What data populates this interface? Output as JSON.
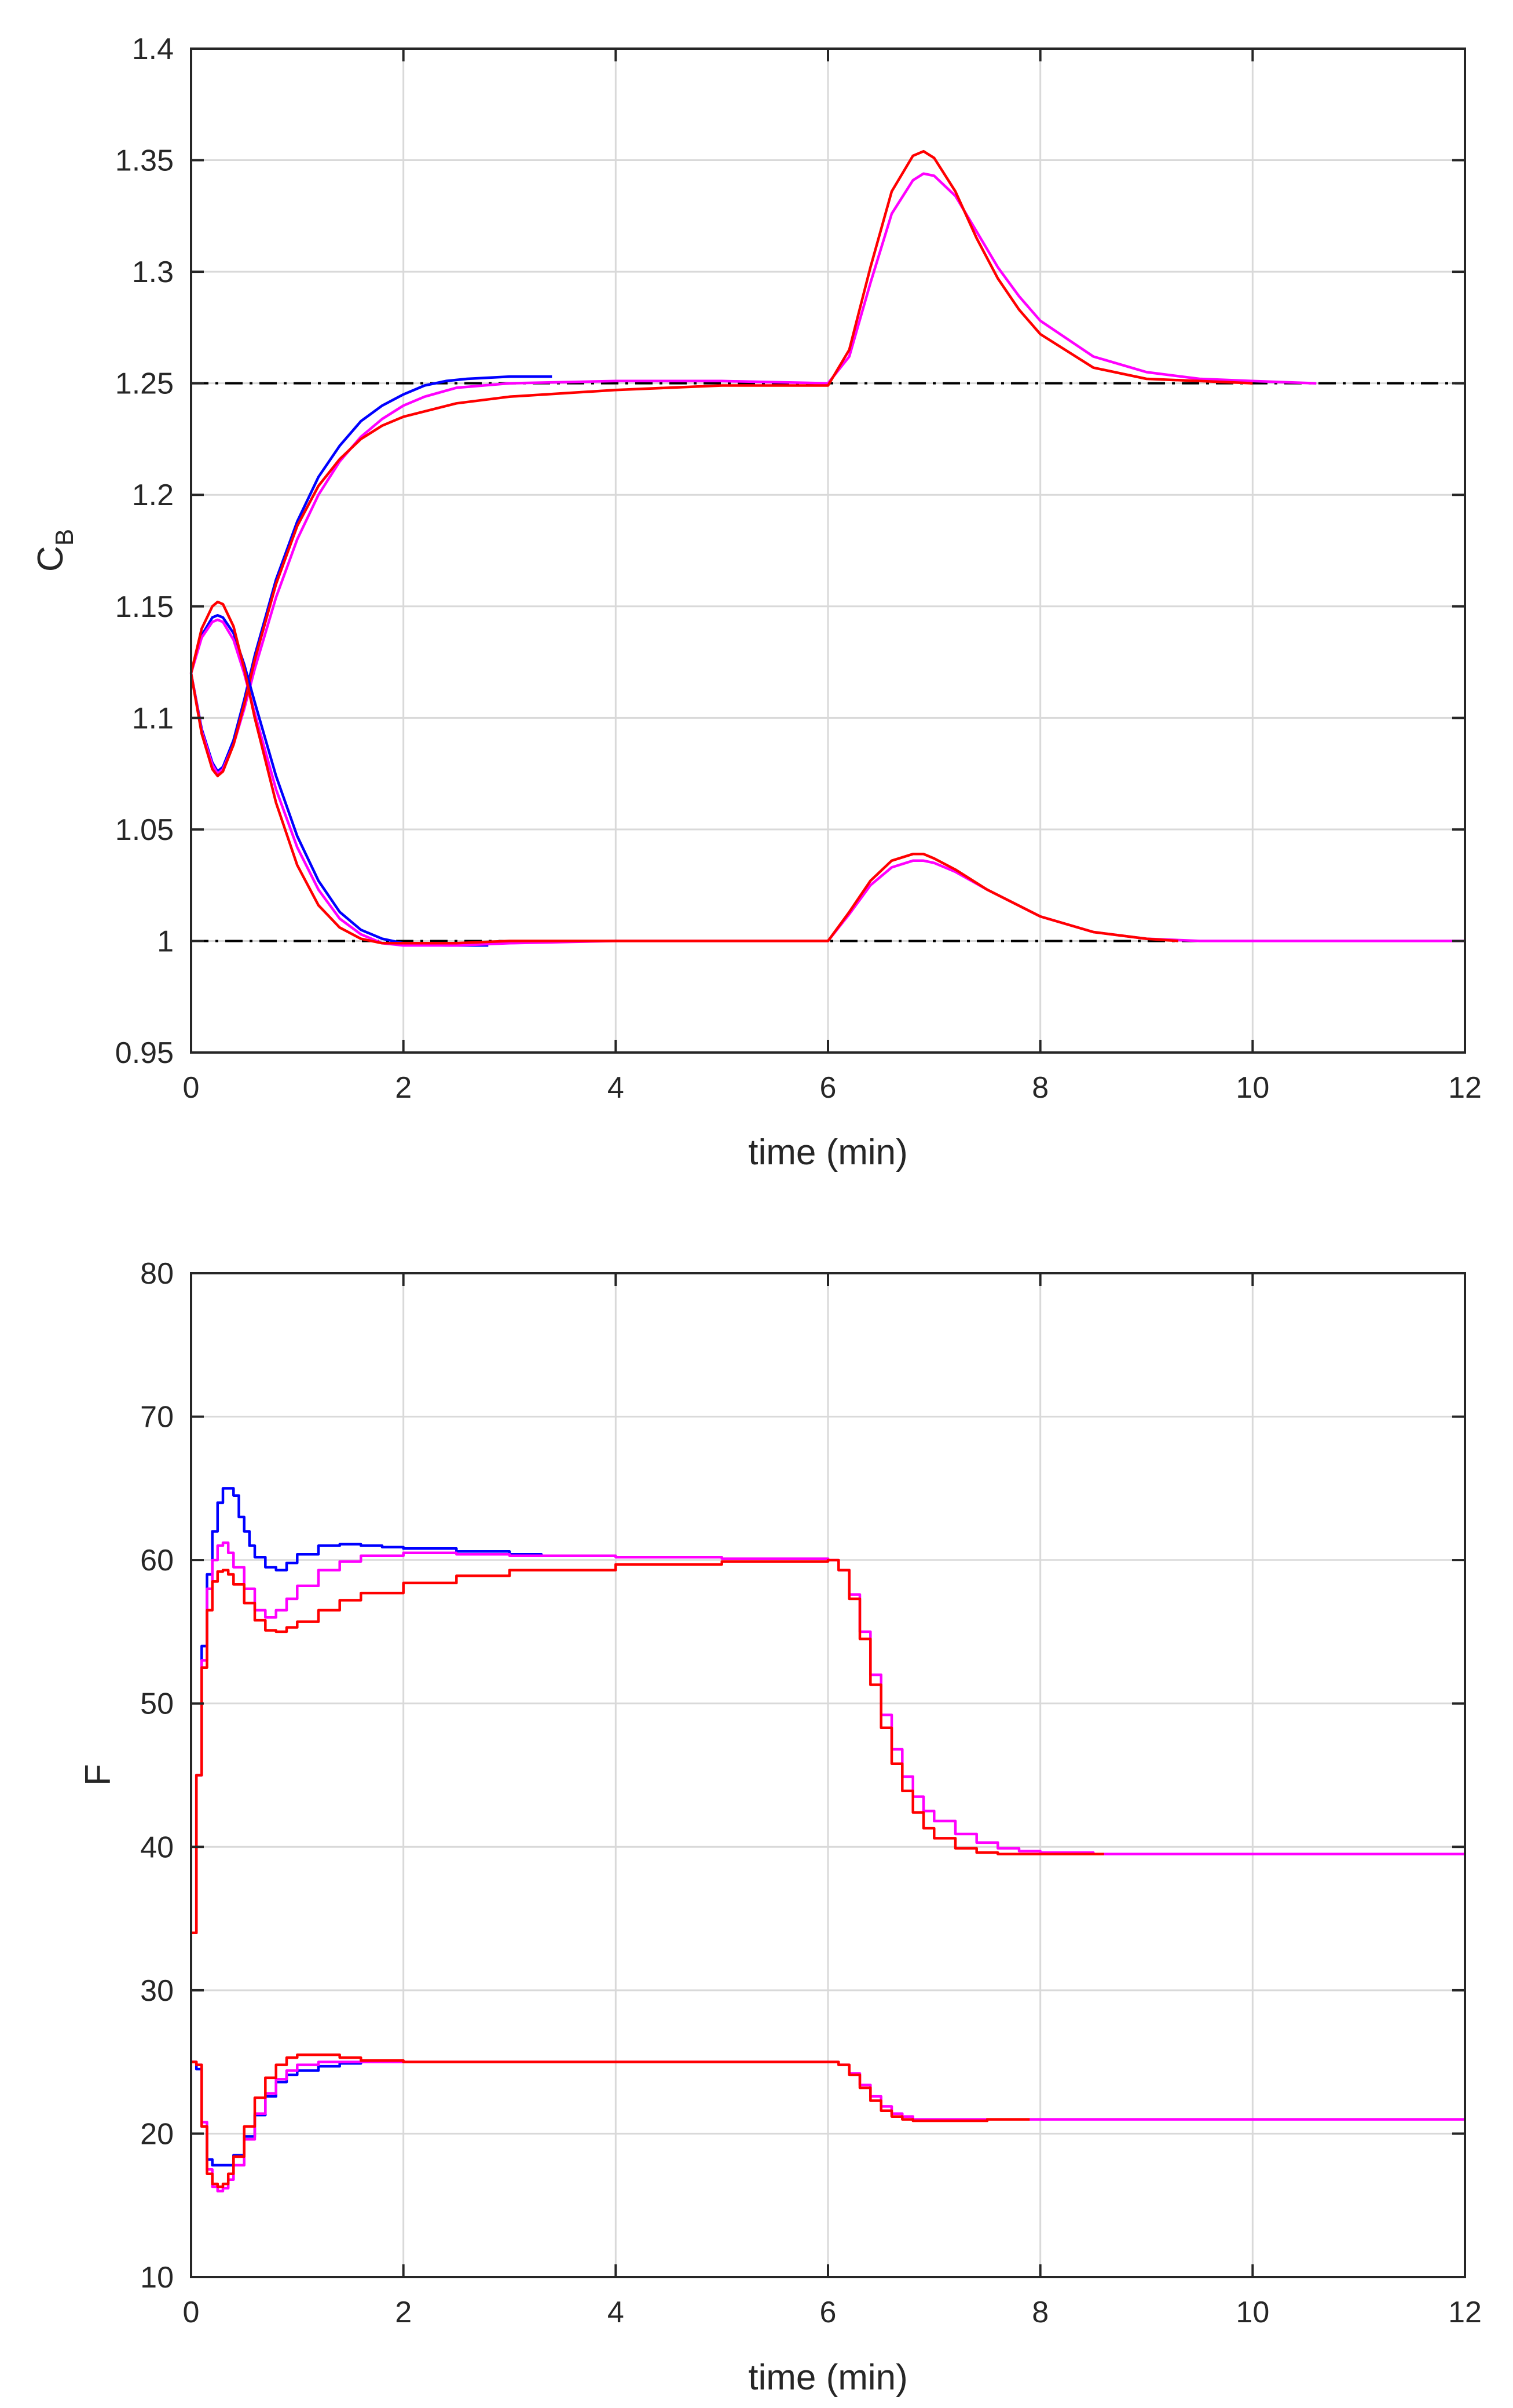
{
  "chart_data": [
    {
      "type": "line",
      "title": "",
      "xlabel": "time (min)",
      "ylabel": "C",
      "ylabel_subscript": "B",
      "xlim": [
        0,
        12
      ],
      "ylim": [
        0.95,
        1.4
      ],
      "xticks": [
        "0",
        "2",
        "4",
        "6",
        "8",
        "10",
        "12"
      ],
      "yticks": [
        "0.95",
        "1",
        "1.05",
        "1.1",
        "1.15",
        "1.2",
        "1.25",
        "1.3",
        "1.35",
        "1.4"
      ],
      "grid": true,
      "reference_lines": [
        {
          "name": "setpoint-high",
          "y": 1.25,
          "style": "dash-dot",
          "color": "#000000"
        },
        {
          "name": "setpoint-low",
          "y": 1.0,
          "style": "dash-dot",
          "color": "#000000"
        }
      ],
      "series": [
        {
          "name": "blue-upper",
          "color": "#0000ff",
          "x": [
            0,
            0.1,
            0.2,
            0.25,
            0.3,
            0.4,
            0.5,
            0.6,
            0.8,
            1.0,
            1.2,
            1.4,
            1.6,
            1.8,
            2.0,
            2.2,
            2.4,
            2.6,
            3.0,
            3.4
          ],
          "y": [
            1.12,
            1.095,
            1.08,
            1.076,
            1.078,
            1.09,
            1.108,
            1.128,
            1.162,
            1.188,
            1.208,
            1.222,
            1.233,
            1.24,
            1.245,
            1.249,
            1.251,
            1.252,
            1.253,
            1.253
          ]
        },
        {
          "name": "magenta-upper",
          "color": "#ff00ff",
          "x": [
            0,
            0.1,
            0.2,
            0.25,
            0.3,
            0.4,
            0.5,
            0.6,
            0.8,
            1.0,
            1.2,
            1.4,
            1.6,
            1.8,
            2.0,
            2.2,
            2.5,
            3.0,
            4.0,
            5.0,
            6.0,
            6.2,
            6.4,
            6.6,
            6.8,
            6.9,
            7.0,
            7.2,
            7.4,
            7.6,
            7.8,
            8.0,
            8.5,
            9.0,
            9.5,
            10.0,
            10.6
          ],
          "y": [
            1.12,
            1.094,
            1.079,
            1.075,
            1.077,
            1.088,
            1.104,
            1.122,
            1.154,
            1.18,
            1.2,
            1.215,
            1.226,
            1.234,
            1.24,
            1.244,
            1.248,
            1.25,
            1.251,
            1.251,
            1.25,
            1.262,
            1.295,
            1.326,
            1.341,
            1.344,
            1.343,
            1.334,
            1.318,
            1.302,
            1.289,
            1.278,
            1.262,
            1.255,
            1.252,
            1.251,
            1.25
          ]
        },
        {
          "name": "red-upper",
          "color": "#ff0000",
          "x": [
            0,
            0.1,
            0.2,
            0.25,
            0.3,
            0.4,
            0.5,
            0.6,
            0.8,
            1.0,
            1.2,
            1.4,
            1.6,
            1.8,
            2.0,
            2.5,
            3.0,
            4.0,
            5.0,
            6.0,
            6.2,
            6.4,
            6.6,
            6.8,
            6.9,
            7.0,
            7.2,
            7.4,
            7.6,
            7.8,
            8.0,
            8.5,
            9.0,
            9.5,
            10.0
          ],
          "y": [
            1.12,
            1.093,
            1.077,
            1.074,
            1.076,
            1.088,
            1.106,
            1.126,
            1.16,
            1.186,
            1.204,
            1.216,
            1.225,
            1.231,
            1.235,
            1.241,
            1.244,
            1.247,
            1.249,
            1.249,
            1.265,
            1.302,
            1.336,
            1.352,
            1.354,
            1.351,
            1.336,
            1.315,
            1.297,
            1.283,
            1.272,
            1.257,
            1.252,
            1.251,
            1.25
          ]
        },
        {
          "name": "blue-lower",
          "color": "#0000ff",
          "x": [
            0,
            0.1,
            0.2,
            0.25,
            0.3,
            0.4,
            0.5,
            0.6,
            0.8,
            1.0,
            1.2,
            1.4,
            1.6,
            1.8,
            2.0,
            2.4,
            2.8
          ],
          "y": [
            1.12,
            1.137,
            1.145,
            1.146,
            1.145,
            1.138,
            1.124,
            1.107,
            1.074,
            1.047,
            1.027,
            1.013,
            1.005,
            1.001,
            0.999,
            0.998,
            0.998
          ]
        },
        {
          "name": "magenta-lower",
          "color": "#ff00ff",
          "x": [
            0,
            0.1,
            0.2,
            0.25,
            0.3,
            0.4,
            0.5,
            0.6,
            0.8,
            1.0,
            1.2,
            1.4,
            1.6,
            1.8,
            2.0,
            2.5,
            3.0,
            4.0,
            5.0,
            6.0,
            6.2,
            6.4,
            6.6,
            6.8,
            6.9,
            7.0,
            7.2,
            7.5,
            8.0,
            8.5,
            9.0,
            9.5,
            10.0,
            12.0
          ],
          "y": [
            1.12,
            1.136,
            1.143,
            1.144,
            1.143,
            1.135,
            1.12,
            1.102,
            1.068,
            1.042,
            1.023,
            1.01,
            1.003,
            0.999,
            0.998,
            0.998,
            0.999,
            1.0,
            1.0,
            1.0,
            1.012,
            1.025,
            1.033,
            1.036,
            1.036,
            1.035,
            1.031,
            1.023,
            1.011,
            1.004,
            1.001,
            1.0,
            1.0,
            1.0
          ]
        },
        {
          "name": "red-lower",
          "color": "#ff0000",
          "x": [
            0,
            0.1,
            0.2,
            0.25,
            0.3,
            0.4,
            0.5,
            0.6,
            0.8,
            1.0,
            1.2,
            1.4,
            1.6,
            1.8,
            2.0,
            2.5,
            3.0,
            4.0,
            5.0,
            6.0,
            6.2,
            6.4,
            6.6,
            6.8,
            6.9,
            7.0,
            7.2,
            7.5,
            8.0,
            8.5,
            9.0,
            9.3
          ],
          "y": [
            1.12,
            1.14,
            1.15,
            1.152,
            1.151,
            1.141,
            1.122,
            1.1,
            1.062,
            1.034,
            1.016,
            1.006,
            1.001,
            0.999,
            0.999,
            0.999,
            1.0,
            1.0,
            1.0,
            1.0,
            1.013,
            1.027,
            1.036,
            1.039,
            1.039,
            1.037,
            1.032,
            1.023,
            1.011,
            1.004,
            1.001,
            1.0
          ]
        }
      ]
    },
    {
      "type": "line",
      "title": "",
      "xlabel": "time (min)",
      "ylabel": "F",
      "xlim": [
        0,
        12
      ],
      "ylim": [
        10,
        80
      ],
      "xticks": [
        "0",
        "2",
        "4",
        "6",
        "8",
        "10",
        "12"
      ],
      "yticks": [
        "10",
        "20",
        "30",
        "40",
        "50",
        "60",
        "70",
        "80"
      ],
      "grid": true,
      "series": [
        {
          "name": "blue-upper",
          "color": "#0000ff",
          "step": true,
          "x": [
            0,
            0.05,
            0.1,
            0.15,
            0.2,
            0.25,
            0.3,
            0.35,
            0.4,
            0.45,
            0.5,
            0.55,
            0.6,
            0.7,
            0.8,
            0.9,
            1.0,
            1.2,
            1.4,
            1.6,
            1.8,
            2.0,
            2.5,
            3.0,
            3.3
          ],
          "y": [
            34,
            45,
            54,
            59,
            62,
            64,
            65,
            65,
            64.5,
            63,
            62,
            61,
            60.2,
            59.5,
            59.3,
            59.8,
            60.4,
            61,
            61.1,
            61,
            60.9,
            60.8,
            60.6,
            60.4,
            60.3
          ]
        },
        {
          "name": "magenta-upper",
          "color": "#ff00ff",
          "step": true,
          "x": [
            0,
            0.05,
            0.1,
            0.15,
            0.2,
            0.25,
            0.3,
            0.35,
            0.4,
            0.5,
            0.6,
            0.7,
            0.8,
            0.9,
            1.0,
            1.2,
            1.4,
            1.6,
            2.0,
            2.5,
            3.0,
            4.0,
            5.0,
            6.0,
            6.1,
            6.2,
            6.3,
            6.4,
            6.5,
            6.6,
            6.7,
            6.8,
            6.9,
            7.0,
            7.2,
            7.4,
            7.6,
            7.8,
            8.0,
            8.5,
            9.0,
            10.0,
            12.0
          ],
          "y": [
            34,
            45,
            53,
            58,
            60,
            61,
            61.2,
            60.5,
            59.5,
            58,
            56.5,
            56,
            56.5,
            57.3,
            58.2,
            59.3,
            59.9,
            60.3,
            60.5,
            60.4,
            60.3,
            60.2,
            60.1,
            60,
            59.3,
            57.6,
            55,
            52,
            49.2,
            46.8,
            44.9,
            43.5,
            42.5,
            41.8,
            40.9,
            40.3,
            39.9,
            39.7,
            39.6,
            39.5,
            39.5,
            39.5,
            39.5
          ]
        },
        {
          "name": "red-upper",
          "color": "#ff0000",
          "step": true,
          "x": [
            0,
            0.05,
            0.1,
            0.15,
            0.2,
            0.25,
            0.3,
            0.35,
            0.4,
            0.5,
            0.6,
            0.7,
            0.8,
            0.9,
            1.0,
            1.2,
            1.4,
            1.6,
            2.0,
            2.5,
            3.0,
            4.0,
            5.0,
            5.5,
            6.0,
            6.1,
            6.2,
            6.3,
            6.4,
            6.5,
            6.6,
            6.7,
            6.8,
            6.9,
            7.0,
            7.2,
            7.4,
            7.6,
            7.8,
            8.0,
            8.6
          ],
          "y": [
            34,
            45,
            52.5,
            56.5,
            58.5,
            59.2,
            59.3,
            59,
            58.3,
            57,
            55.8,
            55.1,
            55,
            55.3,
            55.7,
            56.5,
            57.2,
            57.7,
            58.4,
            58.9,
            59.3,
            59.7,
            59.9,
            59.9,
            60,
            59.3,
            57.3,
            54.5,
            51.3,
            48.3,
            45.8,
            43.9,
            42.4,
            41.3,
            40.6,
            39.9,
            39.6,
            39.5,
            39.5,
            39.5,
            39.5
          ]
        },
        {
          "name": "blue-lower",
          "color": "#0000ff",
          "step": true,
          "x": [
            0,
            0.05,
            0.1,
            0.15,
            0.2,
            0.3,
            0.4,
            0.5,
            0.6,
            0.7,
            0.8,
            0.9,
            1.0,
            1.2,
            1.4,
            1.6
          ],
          "y": [
            25,
            24.5,
            20.5,
            18.2,
            17.8,
            17.8,
            18.5,
            19.8,
            21.3,
            22.6,
            23.6,
            24.1,
            24.4,
            24.7,
            24.9,
            25
          ]
        },
        {
          "name": "magenta-lower",
          "color": "#ff00ff",
          "step": true,
          "x": [
            0,
            0.05,
            0.1,
            0.15,
            0.2,
            0.25,
            0.3,
            0.35,
            0.4,
            0.5,
            0.6,
            0.7,
            0.8,
            0.9,
            1.0,
            1.2,
            1.4,
            1.6,
            2.0,
            3.0,
            4.0,
            5.0,
            6.0,
            6.1,
            6.2,
            6.3,
            6.4,
            6.5,
            6.6,
            6.7,
            6.8,
            7.0,
            7.5,
            8.0,
            9.0,
            10.0,
            12.0
          ],
          "y": [
            25,
            24.8,
            20.8,
            17.5,
            16.3,
            16,
            16.2,
            16.8,
            17.8,
            19.6,
            21.4,
            22.8,
            23.8,
            24.4,
            24.8,
            25,
            25,
            25,
            25,
            25,
            25,
            25,
            25,
            24.8,
            24.2,
            23.4,
            22.6,
            21.9,
            21.4,
            21.2,
            21,
            21,
            21,
            21,
            21,
            21,
            21
          ]
        },
        {
          "name": "red-lower",
          "color": "#ff0000",
          "step": true,
          "x": [
            0,
            0.05,
            0.1,
            0.15,
            0.2,
            0.25,
            0.3,
            0.35,
            0.4,
            0.5,
            0.6,
            0.7,
            0.8,
            0.9,
            1.0,
            1.2,
            1.4,
            1.6,
            2.0,
            3.0,
            4.0,
            5.0,
            6.0,
            6.1,
            6.2,
            6.3,
            6.4,
            6.5,
            6.6,
            6.7,
            6.8,
            7.0,
            7.5,
            7.9
          ],
          "y": [
            25,
            24.8,
            20.5,
            17.2,
            16.5,
            16.3,
            16.5,
            17.2,
            18.4,
            20.5,
            22.5,
            23.9,
            24.8,
            25.3,
            25.5,
            25.5,
            25.3,
            25.1,
            25,
            25,
            25,
            25,
            25,
            24.8,
            24.1,
            23.2,
            22.3,
            21.6,
            21.2,
            21,
            20.9,
            20.9,
            21,
            21
          ]
        }
      ]
    }
  ]
}
